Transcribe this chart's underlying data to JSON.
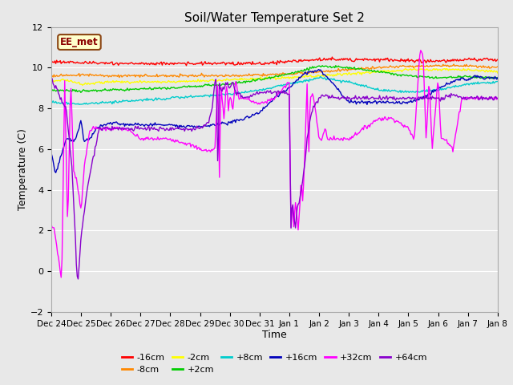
{
  "title": "Soil/Water Temperature Set 2",
  "xlabel": "Time",
  "ylabel": "Temperature (C)",
  "ylim": [
    -2,
    12
  ],
  "yticks": [
    -2,
    0,
    2,
    4,
    6,
    8,
    10,
    12
  ],
  "fig_bg": "#e8e8e8",
  "plot_bg": "#e8e8e8",
  "watermark_text": "EE_met",
  "watermark_bg": "#ffffcc",
  "watermark_border": "#8b4513",
  "watermark_text_color": "#8b0000",
  "series": [
    {
      "label": "-16cm",
      "color": "#ff0000"
    },
    {
      "label": "-8cm",
      "color": "#ff8800"
    },
    {
      "label": "-2cm",
      "color": "#ffff00"
    },
    {
      "label": "+2cm",
      "color": "#00cc00"
    },
    {
      "label": "+8cm",
      "color": "#00cccc"
    },
    {
      "label": "+16cm",
      "color": "#0000bb"
    },
    {
      "label": "+32cm",
      "color": "#ff00ff"
    },
    {
      "label": "+64cm",
      "color": "#8800cc"
    }
  ],
  "xtick_labels": [
    "Dec 24",
    "Dec 25",
    "Dec 26",
    "Dec 27",
    "Dec 28",
    "Dec 29",
    "Dec 30",
    "Dec 31",
    "Jan 1",
    "Jan 2",
    "Jan 3",
    "Jan 4",
    "Jan 5",
    "Jan 6",
    "Jan 7",
    "Jan 8"
  ],
  "grid_color": "#ffffff",
  "legend_ncol": 6
}
